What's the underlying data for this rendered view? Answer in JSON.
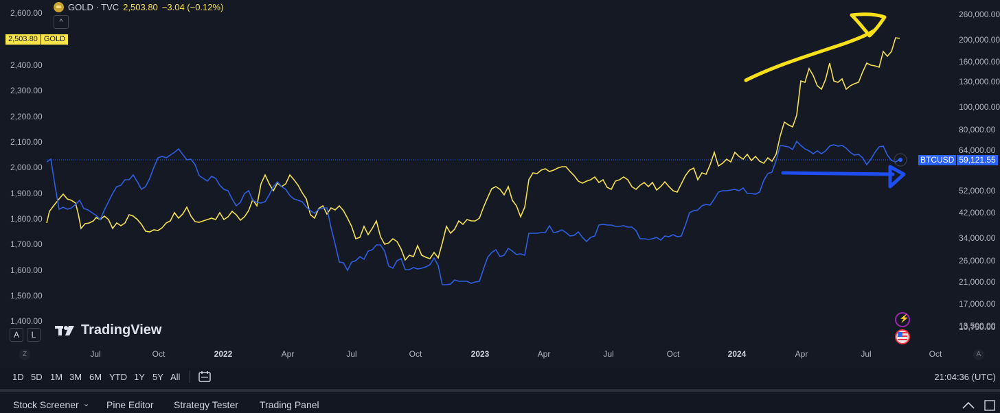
{
  "legend": {
    "symbol": "GOLD · TVC",
    "price": "2,503.80",
    "change": "−3.04 (−0.12%)"
  },
  "tags": {
    "gold_price": "2,503.80",
    "gold_symbol": "GOLD",
    "btc_symbol": "BTCUSD",
    "btc_price": "59,121.55"
  },
  "left_axis": [
    "2,600.00",
    "2,400.00",
    "2,300.00",
    "2,200.00",
    "2,100.00",
    "2,000.00",
    "1,900.00",
    "1,800.00",
    "1,700.00",
    "1,600.00",
    "1,500.00",
    "1,400.00"
  ],
  "right_axis": [
    "260,000.00",
    "200,000.00",
    "160,000.00",
    "130,000.00",
    "100,000.00",
    "80,000.00",
    "64,000.00",
    "52,000.00",
    "42,000.00",
    "34,000.00",
    "26,000.00",
    "21,000.00",
    "17,000.00",
    "13,500.00",
    "10,750.00"
  ],
  "time_axis": [
    "Jul",
    "Oct",
    "2022",
    "Apr",
    "Jul",
    "Oct",
    "2023",
    "Apr",
    "Jul",
    "Oct",
    "2024",
    "Apr",
    "Jul",
    "Oct"
  ],
  "logo_text": "TradingView",
  "scale_buttons": {
    "a": "A",
    "l": "L"
  },
  "range_buttons": [
    "1D",
    "5D",
    "1M",
    "3M",
    "6M",
    "YTD",
    "1Y",
    "5Y",
    "All"
  ],
  "clock": "21:04:36 (UTC)",
  "zoom_left": "Z",
  "zoom_right": "A",
  "panels": {
    "screener": "Stock Screener",
    "pine": "Pine Editor",
    "strategy": "Strategy Tester",
    "trading": "Trading Panel"
  },
  "colors": {
    "gold_line": "#f5e14f",
    "btc_line": "#2f5fe0",
    "background": "#151924",
    "annotation_yellow": "#f7e01a",
    "annotation_blue": "#1f4ef0"
  },
  "chart_data": [
    {
      "type": "line",
      "series": [
        {
          "name": "GOLD",
          "axis": "left",
          "x": [
            "2021-05",
            "2021-07",
            "2021-10",
            "2022-01",
            "2022-03",
            "2022-05",
            "2022-07",
            "2022-09",
            "2022-11",
            "2023-01",
            "2023-03",
            "2023-05",
            "2023-07",
            "2023-09",
            "2023-10",
            "2023-12",
            "2024-02",
            "2024-03",
            "2024-04",
            "2024-05",
            "2024-06",
            "2024-07",
            "2024-08"
          ],
          "values": [
            1790,
            1810,
            1760,
            1800,
            1950,
            1840,
            1740,
            1660,
            1760,
            1920,
            1960,
            2010,
            1960,
            1920,
            1990,
            2070,
            2030,
            2160,
            2390,
            2340,
            2330,
            2400,
            2503.8
          ]
        },
        {
          "name": "BTCUSD",
          "axis": "right",
          "x": [
            "2021-05",
            "2021-07",
            "2021-09",
            "2021-11",
            "2022-01",
            "2022-03",
            "2022-05",
            "2022-06",
            "2022-08",
            "2022-11",
            "2023-01",
            "2023-03",
            "2023-05",
            "2023-07",
            "2023-09",
            "2023-10",
            "2023-12",
            "2024-02",
            "2024-03",
            "2024-05",
            "2024-07",
            "2024-08"
          ],
          "values": [
            58000,
            34000,
            43000,
            65000,
            38000,
            45000,
            30000,
            20000,
            21000,
            16000,
            23000,
            28000,
            27000,
            30000,
            26000,
            34000,
            43000,
            51000,
            70000,
            62000,
            66000,
            59121.55
          ]
        }
      ],
      "left_ylim": [
        1400,
        2650
      ],
      "right_scale": "log"
    }
  ]
}
